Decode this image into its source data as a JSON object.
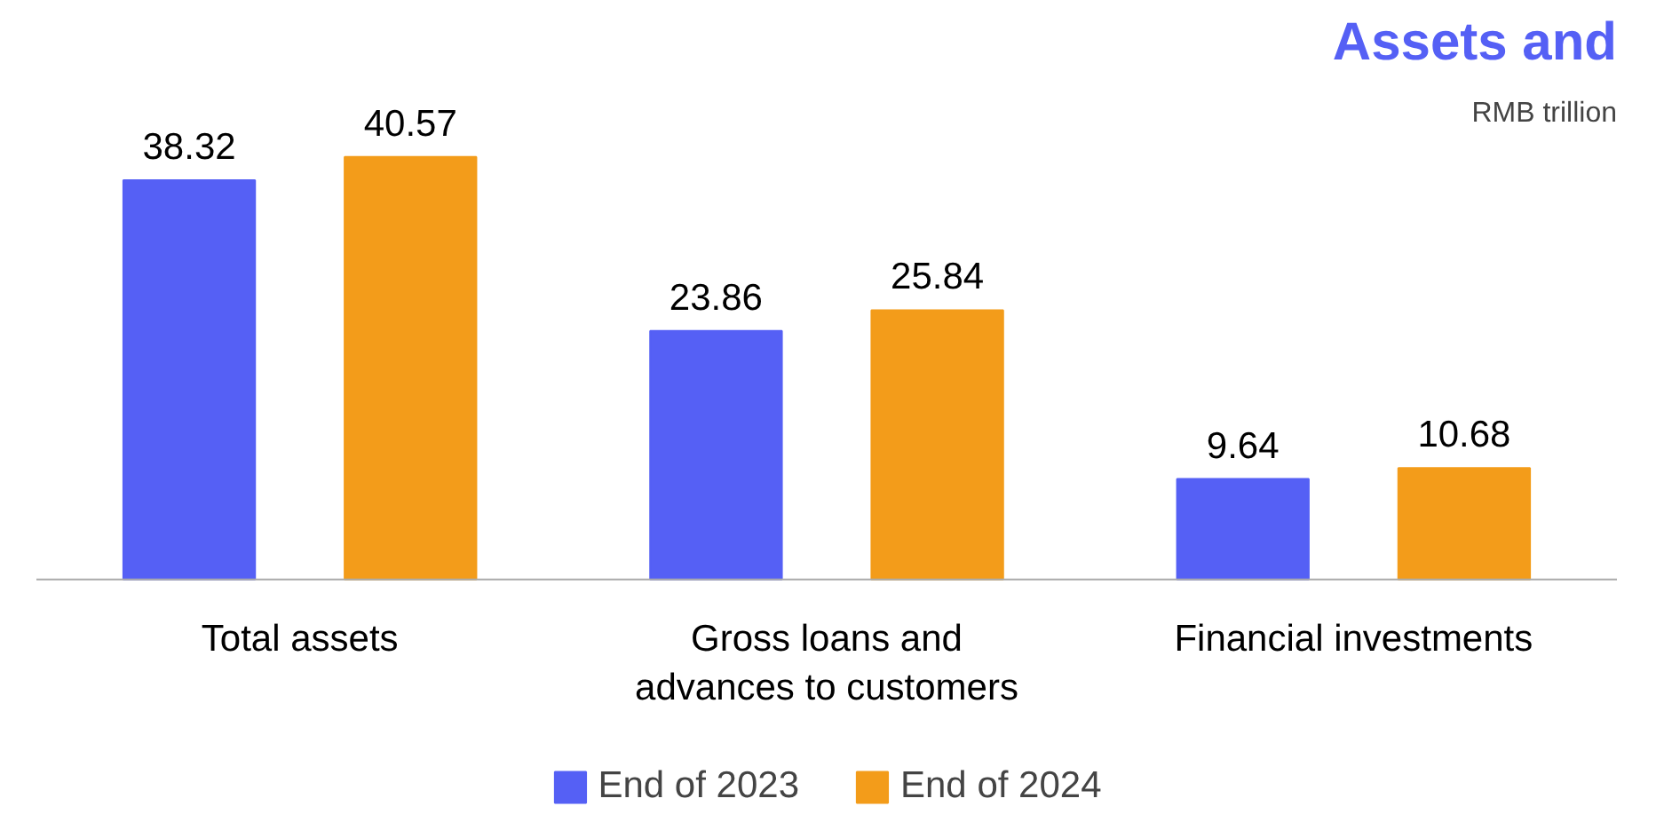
{
  "chart_data": {
    "type": "bar",
    "title": "Assets and",
    "annotations": [
      "RMB trillion"
    ],
    "categories": [
      "Total assets",
      "Gross loans and\nadvances to customers",
      "Financial investments"
    ],
    "series": [
      {
        "name": "End of 2023",
        "color": "#5560f5",
        "values": [
          38.32,
          23.86,
          9.64
        ]
      },
      {
        "name": "End of 2024",
        "color": "#f39c1a",
        "values": [
          40.57,
          25.84,
          10.68
        ]
      }
    ],
    "data_labels": true,
    "grid": false,
    "legend": "bottom"
  }
}
